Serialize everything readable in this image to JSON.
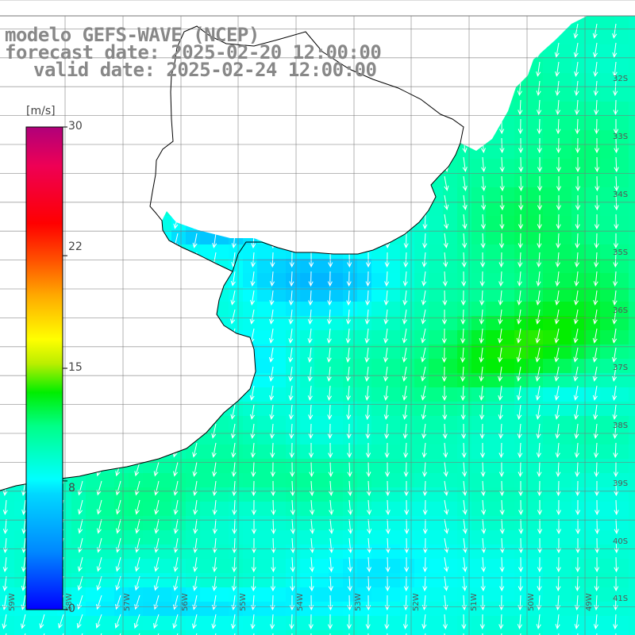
{
  "titles": {
    "line1": "modelo GEFS-WAVE (NCEP)",
    "line2": "forecast date: 2025-02-20 12:00:00",
    "line3": "valid date: 2025-02-24 12:00:00"
  },
  "colorbar": {
    "unit": "[m/s]",
    "ticks": [
      "30",
      "22",
      "15",
      "8",
      "0"
    ],
    "tick_values": [
      30,
      22,
      15,
      8,
      0
    ],
    "min": 0,
    "max": 30,
    "colors": [
      "#0000ff",
      "#00aaff",
      "#00ffff",
      "#00ff55",
      "#00dd00",
      "#88ee00",
      "#ffff00",
      "#ffaa00",
      "#ff5500",
      "#ff0000",
      "#dd0066",
      "#aa0099"
    ]
  },
  "grid_labels": {
    "lat": [
      "32S",
      "33S",
      "34S",
      "35S",
      "36S",
      "37S",
      "38S",
      "39S",
      "40S",
      "41S"
    ],
    "lon": [
      "59W",
      "58W",
      "57W",
      "56W",
      "55W",
      "54W",
      "53W",
      "52W",
      "51W",
      "50W",
      "49W"
    ]
  },
  "field": {
    "variable": "wind speed",
    "unit": "m/s",
    "typical_direction": "from north-northeast"
  },
  "colors": {
    "land": "#ffffff",
    "coastline": "#000000",
    "grid": "#888888",
    "arrows": "#ffffff",
    "title_text": "#888888"
  }
}
